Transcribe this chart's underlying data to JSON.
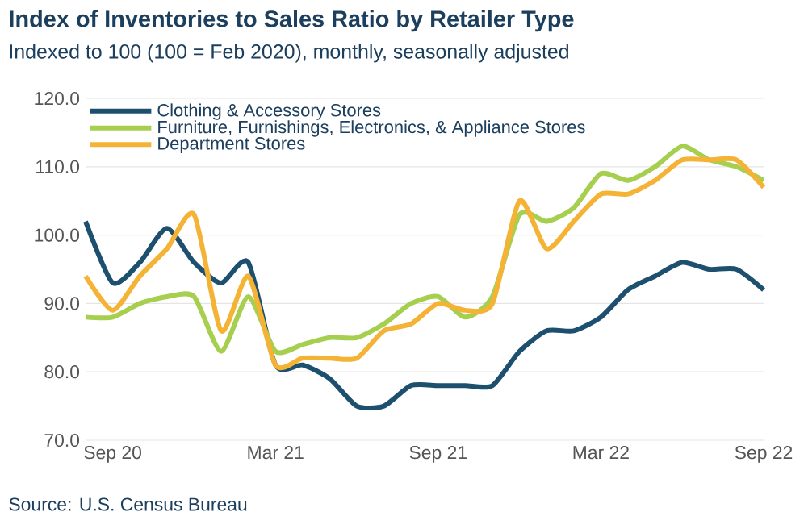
{
  "chart_data": {
    "type": "line",
    "title": "Index of Inventories to Sales Ratio by Retailer Type",
    "subtitle": "Indexed to 100 (100 = Feb 2020), monthly, seasonally adjusted",
    "x": [
      "2020-08",
      "2020-09",
      "2020-10",
      "2020-11",
      "2020-12",
      "2021-01",
      "2021-02",
      "2021-03",
      "2021-04",
      "2021-05",
      "2021-06",
      "2021-07",
      "2021-08",
      "2021-09",
      "2021-10",
      "2021-11",
      "2021-12",
      "2022-01",
      "2022-02",
      "2022-03",
      "2022-04",
      "2022-05",
      "2022-06",
      "2022-07",
      "2022-08",
      "2022-09"
    ],
    "series": [
      {
        "name": "Clothing & Accessory Stores",
        "color": "#1d4f6e",
        "values": [
          102,
          93,
          96,
          101,
          96,
          93,
          96,
          81,
          81,
          79,
          75,
          75,
          78,
          78,
          78,
          78,
          83,
          86,
          86,
          88,
          92,
          94,
          96,
          95,
          95,
          92
        ]
      },
      {
        "name": "Furniture,  Furnishings, Electronics, & Appliance Stores",
        "color": "#a6cf4f",
        "values": [
          88,
          88,
          90,
          91,
          91,
          83,
          91,
          83,
          84,
          85,
          85,
          87,
          90,
          91,
          88,
          91,
          103,
          102,
          104,
          109,
          108,
          110,
          113,
          111,
          110,
          108
        ]
      },
      {
        "name": "Department Stores",
        "color": "#f5b335",
        "values": [
          94,
          89,
          94,
          98,
          103,
          86,
          94,
          81,
          82,
          82,
          82,
          86,
          87,
          90,
          89,
          90,
          105,
          98,
          102,
          106,
          106,
          108,
          111,
          111,
          111,
          107
        ]
      }
    ],
    "xlim": [
      "2020-08",
      "2022-09"
    ],
    "xticks": [
      {
        "value": "2020-09",
        "label": "Sep 20"
      },
      {
        "value": "2021-03",
        "label": "Mar 21"
      },
      {
        "value": "2021-09",
        "label": "Sep 21"
      },
      {
        "value": "2022-03",
        "label": "Mar 22"
      },
      {
        "value": "2022-09",
        "label": "Sep 22"
      }
    ],
    "ylim": [
      70,
      120
    ],
    "yticks": [
      {
        "value": 70,
        "label": "70.0"
      },
      {
        "value": 80,
        "label": "80.0"
      },
      {
        "value": 90,
        "label": "90.0"
      },
      {
        "value": 100,
        "label": "100.0"
      },
      {
        "value": 110,
        "label": "110.0"
      },
      {
        "value": 120,
        "label": "120.0"
      }
    ],
    "grid": "y",
    "legend": "top left",
    "marker": "none",
    "line_style": "solid",
    "annotations": [
      "Source: U.S. Census Bureau"
    ]
  }
}
